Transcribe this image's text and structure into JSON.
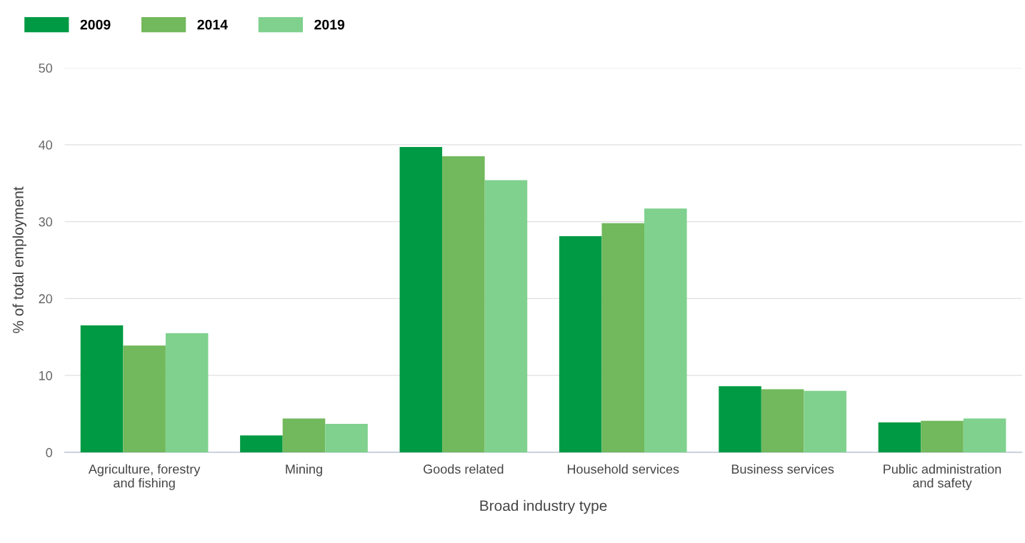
{
  "chart_data": {
    "type": "bar",
    "xlabel": "Broad industry type",
    "ylabel": "% of total employment",
    "categories": [
      "Agriculture, forestry\nand fishing",
      "Mining",
      "Goods related",
      "Household services",
      "Business services",
      "Public administration\nand safety"
    ],
    "series": [
      {
        "name": "2009",
        "color": "#009a44",
        "values": [
          16.5,
          2.2,
          39.7,
          28.1,
          8.6,
          3.9
        ]
      },
      {
        "name": "2014",
        "color": "#72b85c",
        "values": [
          13.9,
          4.4,
          38.5,
          29.8,
          8.2,
          4.1
        ]
      },
      {
        "name": "2019",
        "color": "#7fd18d",
        "values": [
          15.5,
          3.7,
          35.4,
          31.7,
          8.0,
          4.4
        ]
      }
    ],
    "ylim": [
      0,
      50
    ],
    "yticks": [
      0,
      10,
      20,
      30,
      40,
      50
    ],
    "grid": "y",
    "legend": "top left"
  }
}
